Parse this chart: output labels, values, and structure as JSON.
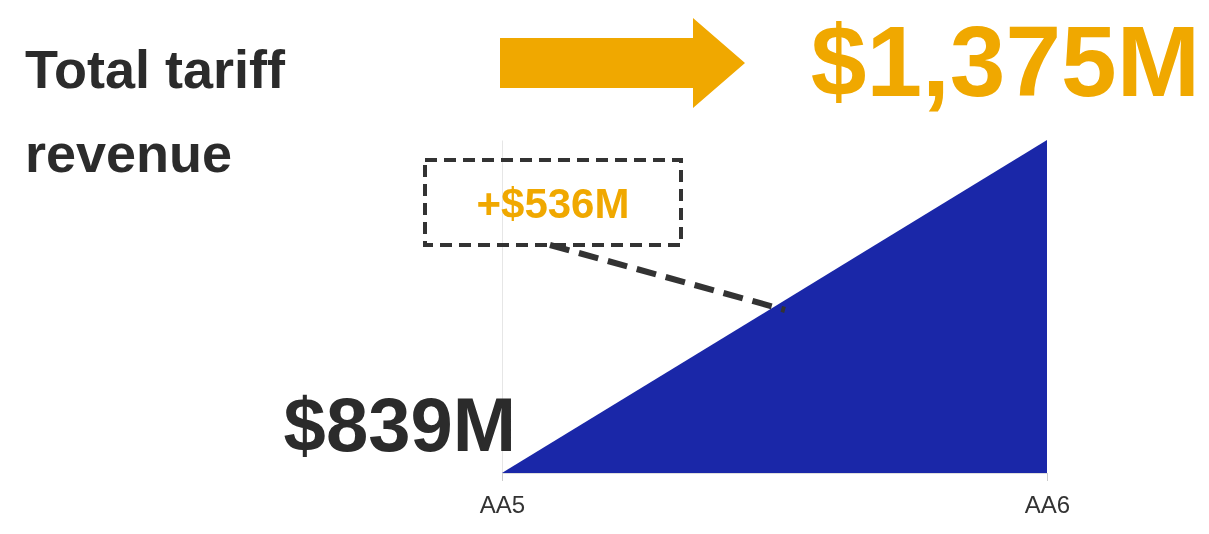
{
  "chart_data": {
    "type": "area",
    "title": "Total tariff revenue",
    "categories": [
      "AA5",
      "AA6"
    ],
    "series": [
      {
        "color": "#1a27a8",
        "values": [
          839,
          1375
        ],
        "value_labels": [
          "$839M",
          "$1,375M"
        ]
      }
    ],
    "ylim": [
      839,
      1375
    ],
    "annotations": [
      "+$536M"
    ]
  }
}
